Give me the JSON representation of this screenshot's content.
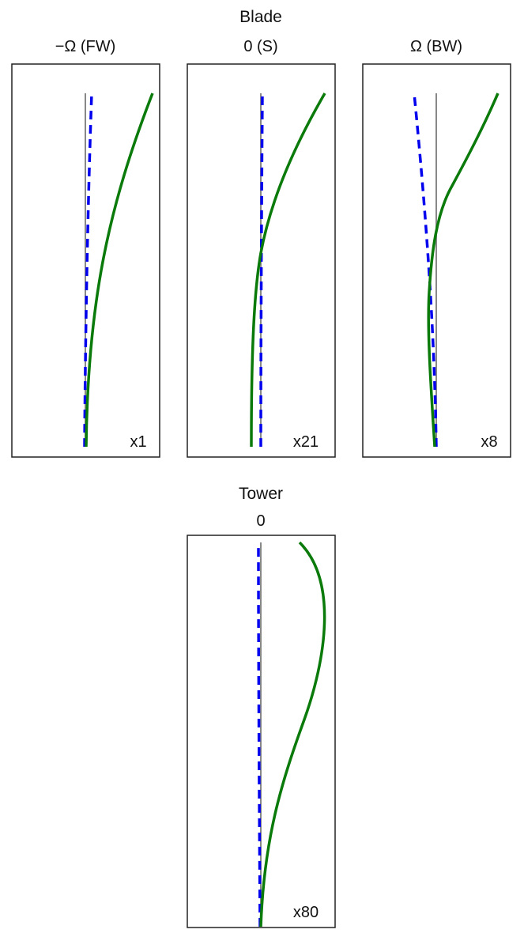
{
  "blade": {
    "title": "Blade",
    "panels": [
      {
        "label": "−Ω (FW)",
        "scale": "x1"
      },
      {
        "label": "0 (S)",
        "scale": "x21"
      },
      {
        "label": "Ω (BW)",
        "scale": "x8"
      }
    ]
  },
  "tower": {
    "title": "Tower",
    "panels": [
      {
        "label": "0",
        "scale": "x80"
      }
    ]
  },
  "colors": {
    "solid_curve": "#0a7a0a",
    "dashed_curve": "#0000ee",
    "reference_line": "#888888"
  }
}
